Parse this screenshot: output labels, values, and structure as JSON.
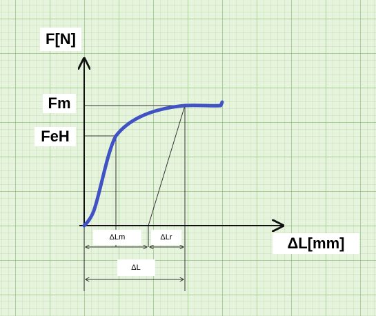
{
  "labels": {
    "y_axis": "F[N]",
    "fm": "Fm",
    "feh": "FeH",
    "x_axis": "ΔL[mm]",
    "dlm": "ΔLm",
    "dlr": "ΔLr",
    "dl": "ΔL"
  }
}
